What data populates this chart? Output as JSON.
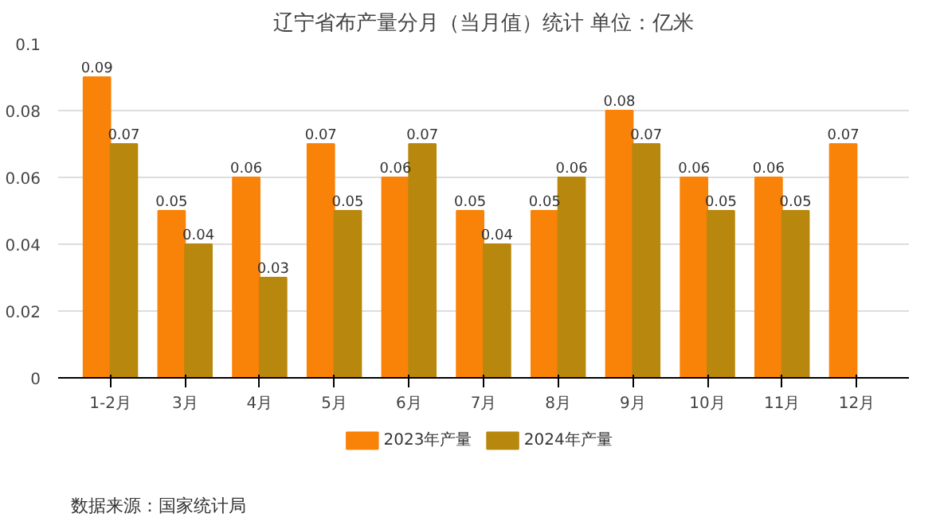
{
  "chart_data": {
    "type": "bar",
    "title": "辽宁省布产量分月（当月值）统计 单位：亿米",
    "categories": [
      "1-2月",
      "3月",
      "4月",
      "5月",
      "6月",
      "7月",
      "8月",
      "9月",
      "10月",
      "11月",
      "12月"
    ],
    "series": [
      {
        "name": "2023年产量",
        "color": "#f98208",
        "values": [
          0.09,
          0.05,
          0.06,
          0.07,
          0.06,
          0.05,
          0.05,
          0.08,
          0.06,
          0.06,
          0.07
        ]
      },
      {
        "name": "2024年产量",
        "color": "#b8880e",
        "values": [
          0.07,
          0.04,
          0.03,
          0.05,
          0.07,
          0.04,
          0.06,
          0.07,
          0.05,
          0.05,
          null
        ]
      }
    ],
    "ylim": [
      0,
      0.1
    ],
    "yticks": [
      0,
      0.02,
      0.04,
      0.06,
      0.08,
      0.1
    ],
    "grid": "y",
    "legend": "bottom",
    "data_labels": true,
    "annotations": [
      "数据来源：国家统计局"
    ]
  }
}
